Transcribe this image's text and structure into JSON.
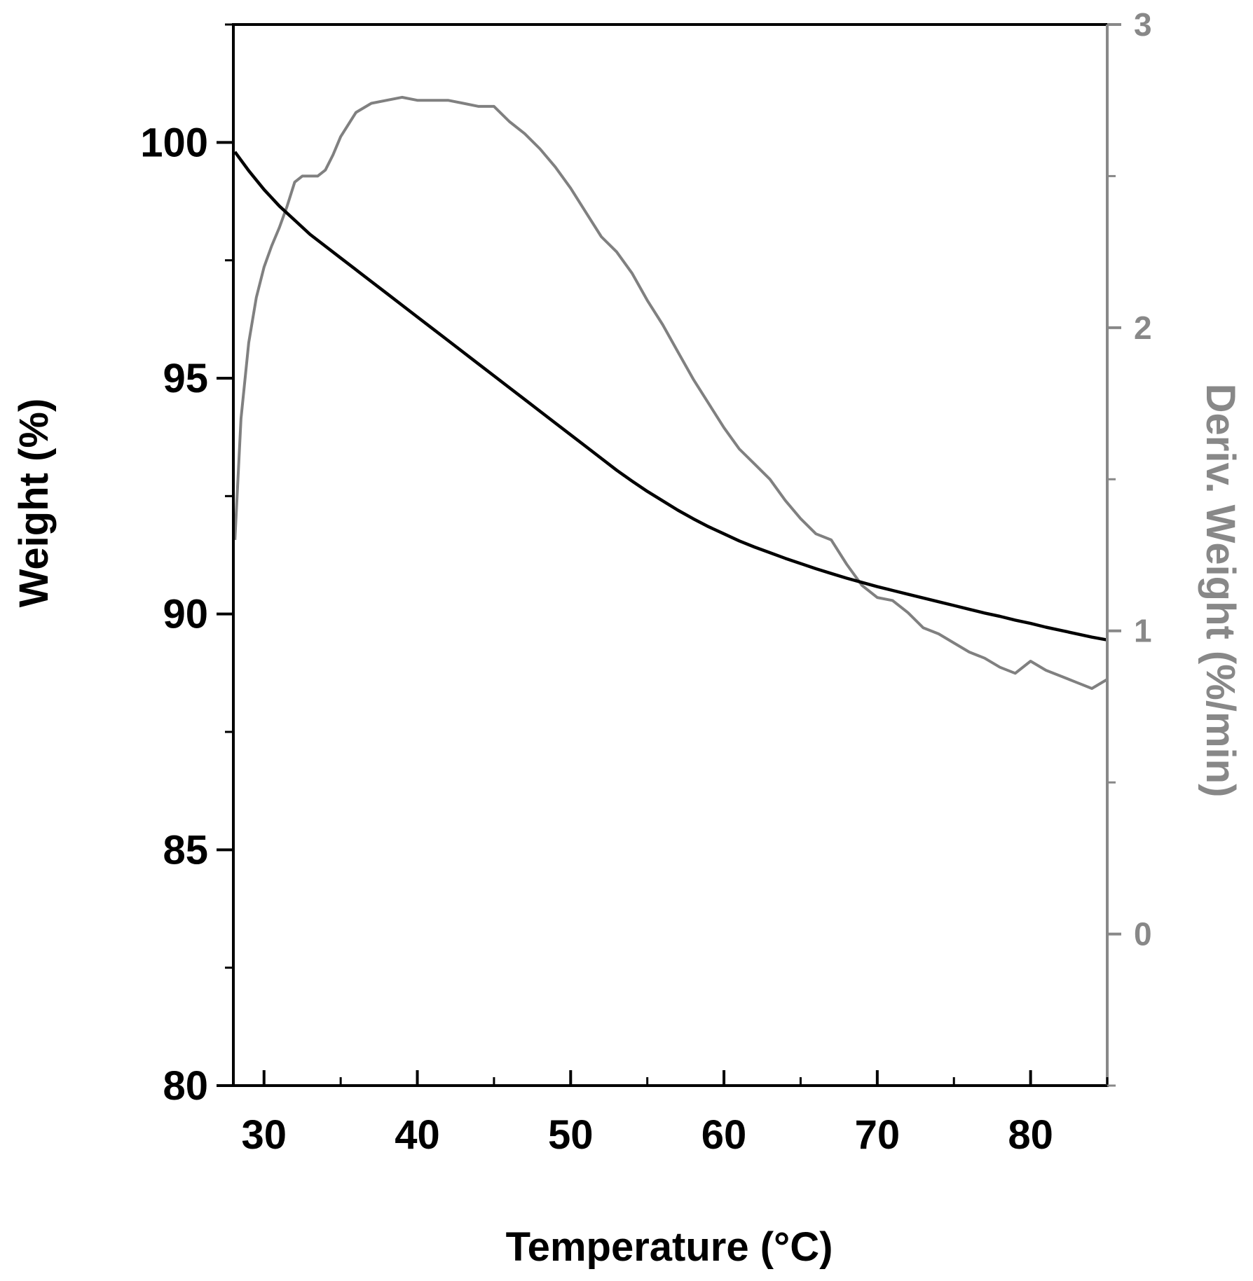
{
  "chart_data": {
    "type": "line",
    "title": "",
    "xlabel": "Temperature (°C)",
    "ylabel": "Weight (%)",
    "y2label": "Deriv. Weight (%/min)",
    "xlim": [
      28,
      85
    ],
    "ylim": [
      80,
      102.5
    ],
    "y2lim": [
      -0.5,
      3
    ],
    "x_ticks": [
      30,
      40,
      50,
      60,
      70,
      80
    ],
    "x_tick_labels": [
      "30",
      "40",
      "50",
      "60",
      "70",
      "80"
    ],
    "y_ticks": [
      80,
      85,
      90,
      95,
      100
    ],
    "y_tick_labels": [
      "80",
      "85",
      "90",
      "95",
      "100"
    ],
    "y2_ticks": [
      0,
      1,
      2,
      3
    ],
    "y2_tick_labels": [
      "0",
      "1",
      "2",
      "3"
    ],
    "colors": {
      "weight": "#000000",
      "deriv": "#808080",
      "axis2": "#888888"
    },
    "series": [
      {
        "name": "Weight",
        "axis": "left",
        "x": [
          28.1,
          29,
          30,
          31,
          32,
          33,
          34,
          35,
          36,
          37,
          38,
          39,
          40,
          41,
          42,
          43,
          44,
          45,
          46,
          47,
          48,
          49,
          50,
          51,
          52,
          53,
          54,
          55,
          56,
          57,
          58,
          59,
          60,
          61,
          62,
          63,
          64,
          65,
          66,
          67,
          68,
          69,
          70,
          71,
          72,
          73,
          74,
          75,
          76,
          77,
          78,
          79,
          80,
          81,
          82,
          83,
          84,
          85
        ],
        "values": [
          99.8,
          99.4,
          99.0,
          98.65,
          98.35,
          98.05,
          97.8,
          97.55,
          97.3,
          97.05,
          96.8,
          96.55,
          96.3,
          96.05,
          95.8,
          95.55,
          95.3,
          95.05,
          94.8,
          94.55,
          94.3,
          94.05,
          93.8,
          93.55,
          93.3,
          93.05,
          92.82,
          92.6,
          92.4,
          92.2,
          92.02,
          91.85,
          91.7,
          91.55,
          91.42,
          91.3,
          91.18,
          91.07,
          90.96,
          90.86,
          90.76,
          90.67,
          90.58,
          90.5,
          90.42,
          90.34,
          90.26,
          90.18,
          90.1,
          90.02,
          89.95,
          89.87,
          89.8,
          89.72,
          89.65,
          89.58,
          89.51,
          89.45
        ]
      },
      {
        "name": "Deriv. Weight",
        "axis": "right",
        "x": [
          28.1,
          28.5,
          29,
          29.5,
          30,
          30.5,
          31,
          31.5,
          32,
          32.5,
          33,
          33.5,
          34,
          34.5,
          35,
          36,
          37,
          38,
          39,
          40,
          41,
          42,
          43,
          44,
          45,
          46,
          47,
          48,
          49,
          50,
          51,
          52,
          53,
          54,
          55,
          56,
          57,
          58,
          59,
          60,
          61,
          62,
          63,
          64,
          65,
          66,
          67,
          68,
          69,
          70,
          71,
          72,
          73,
          74,
          75,
          76,
          77,
          78,
          79,
          80,
          81,
          82,
          83,
          84,
          85
        ],
        "values": [
          1.3,
          1.7,
          1.95,
          2.1,
          2.2,
          2.27,
          2.33,
          2.4,
          2.48,
          2.5,
          2.5,
          2.5,
          2.52,
          2.57,
          2.63,
          2.71,
          2.74,
          2.75,
          2.76,
          2.75,
          2.75,
          2.75,
          2.74,
          2.73,
          2.73,
          2.68,
          2.64,
          2.59,
          2.53,
          2.46,
          2.38,
          2.3,
          2.25,
          2.18,
          2.09,
          2.01,
          1.92,
          1.83,
          1.75,
          1.67,
          1.6,
          1.55,
          1.5,
          1.43,
          1.37,
          1.32,
          1.3,
          1.22,
          1.15,
          1.11,
          1.1,
          1.06,
          1.01,
          0.99,
          0.96,
          0.93,
          0.91,
          0.88,
          0.86,
          0.9,
          0.87,
          0.85,
          0.83,
          0.81,
          0.84
        ]
      }
    ]
  }
}
